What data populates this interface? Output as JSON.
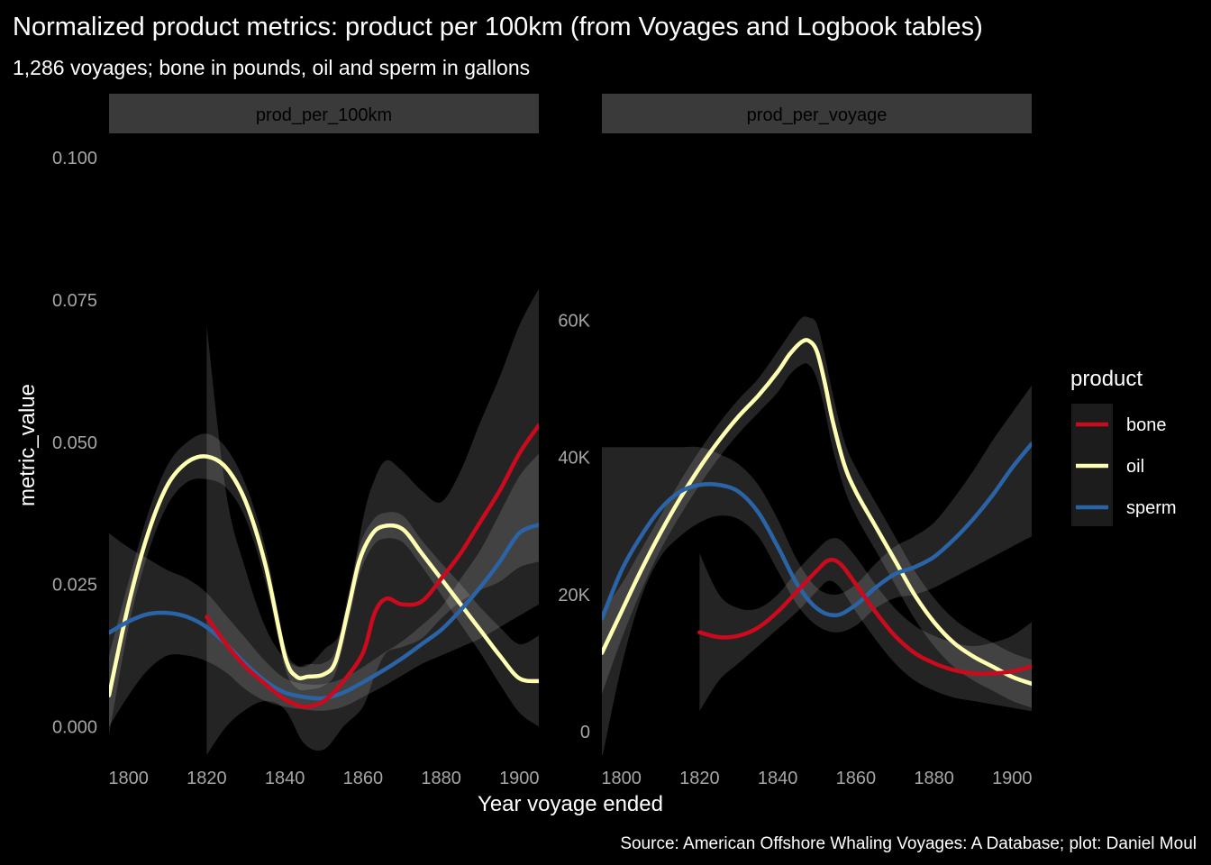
{
  "title": "Normalized product metrics: product per 100km (from Voyages and Logbook tables)",
  "subtitle": "1,286 voyages; bone in pounds, oil and sperm in gallons",
  "caption": "Source: American Offshore Whaling Voyages: A Database; plot: Daniel Moul",
  "xlabel": "Year voyage ended",
  "ylabel": "metric_value",
  "colors": {
    "background": "#000000",
    "strip": "#3a3a3a",
    "band": "#ffffff",
    "axis_text": "#a6a6a6",
    "text": "#ffffff",
    "bone": "#cc0a1e",
    "oil": "#ffffb3",
    "sperm": "#2b64a6"
  },
  "legend": {
    "title": "product",
    "position": "right",
    "items": [
      {
        "key": "bone",
        "label": "bone"
      },
      {
        "key": "oil",
        "label": "oil"
      },
      {
        "key": "sperm",
        "label": "sperm"
      }
    ]
  },
  "chart_data": [
    {
      "type": "line",
      "facet": "prod_per_100km",
      "xlim": [
        1795,
        1905
      ],
      "ylim": [
        -0.005,
        0.104
      ],
      "x_ticks": [
        1800,
        1820,
        1840,
        1860,
        1880,
        1900
      ],
      "y_ticks": [
        {
          "value": 0.0,
          "label": "0.000"
        },
        {
          "value": 0.025,
          "label": "0.025"
        },
        {
          "value": 0.05,
          "label": "0.050"
        },
        {
          "value": 0.075,
          "label": "0.075"
        },
        {
          "value": 0.1,
          "label": "0.100"
        }
      ],
      "series": [
        {
          "key": "bone",
          "x": [
            1820,
            1825,
            1830,
            1835,
            1840,
            1845,
            1850,
            1855,
            1860,
            1863,
            1866,
            1870,
            1875,
            1880,
            1885,
            1890,
            1895,
            1900,
            1905
          ],
          "y": [
            0.0193,
            0.0145,
            0.0105,
            0.0075,
            0.0048,
            0.0035,
            0.0045,
            0.008,
            0.013,
            0.02,
            0.0225,
            0.0215,
            0.022,
            0.026,
            0.0305,
            0.036,
            0.0415,
            0.048,
            0.053
          ],
          "lower": [
            -0.005,
            0.0,
            0.003,
            0.0045,
            0.003,
            -0.003,
            -0.004,
            0.0,
            0.0035,
            0.009,
            0.013,
            0.014,
            0.0155,
            0.019,
            0.022,
            0.024,
            0.0255,
            0.028,
            0.029
          ],
          "upper": [
            0.0705,
            0.041,
            0.0275,
            0.0175,
            0.012,
            0.0105,
            0.0135,
            0.018,
            0.0365,
            0.0435,
            0.0468,
            0.045,
            0.0415,
            0.0395,
            0.045,
            0.0535,
            0.0615,
            0.0705,
            0.077
          ]
        },
        {
          "key": "oil",
          "x": [
            1795,
            1800,
            1805,
            1810,
            1815,
            1820,
            1825,
            1830,
            1835,
            1840,
            1843,
            1846,
            1850,
            1853,
            1856,
            1859,
            1862,
            1865,
            1870,
            1875,
            1880,
            1885,
            1890,
            1895,
            1900,
            1905
          ],
          "y": [
            0.0055,
            0.0215,
            0.034,
            0.0425,
            0.0465,
            0.0475,
            0.0455,
            0.0395,
            0.0285,
            0.0125,
            0.0088,
            0.0088,
            0.0092,
            0.0115,
            0.02,
            0.029,
            0.0335,
            0.0352,
            0.0348,
            0.0305,
            0.026,
            0.0215,
            0.017,
            0.0125,
            0.0085,
            0.008
          ],
          "lower": [
            -0.0015,
            0.0175,
            0.0305,
            0.039,
            0.043,
            0.0435,
            0.042,
            0.0365,
            0.0255,
            0.0105,
            0.0068,
            0.0065,
            0.0072,
            0.0095,
            0.0175,
            0.0265,
            0.0312,
            0.033,
            0.0325,
            0.0282,
            0.0232,
            0.018,
            0.013,
            0.0075,
            0.0025,
            0.0
          ],
          "upper": [
            0.0125,
            0.0255,
            0.0375,
            0.046,
            0.05,
            0.0515,
            0.049,
            0.0425,
            0.0315,
            0.0145,
            0.0108,
            0.011,
            0.0112,
            0.0135,
            0.0225,
            0.0315,
            0.0358,
            0.0375,
            0.0372,
            0.0328,
            0.0288,
            0.025,
            0.021,
            0.0175,
            0.0145,
            0.016
          ]
        },
        {
          "key": "sperm",
          "x": [
            1795,
            1800,
            1805,
            1810,
            1815,
            1820,
            1825,
            1830,
            1835,
            1840,
            1845,
            1850,
            1855,
            1860,
            1865,
            1870,
            1875,
            1880,
            1885,
            1890,
            1895,
            1900,
            1905
          ],
          "y": [
            0.0165,
            0.0185,
            0.0198,
            0.02,
            0.0193,
            0.0175,
            0.0145,
            0.011,
            0.008,
            0.006,
            0.0052,
            0.005,
            0.006,
            0.0078,
            0.0098,
            0.012,
            0.0145,
            0.017,
            0.0205,
            0.0245,
            0.029,
            0.034,
            0.0355
          ],
          "lower": [
            0.0,
            0.0055,
            0.01,
            0.0125,
            0.0125,
            0.0115,
            0.0095,
            0.0065,
            0.0045,
            0.0035,
            0.003,
            0.0028,
            0.0035,
            0.0052,
            0.007,
            0.009,
            0.011,
            0.0125,
            0.014,
            0.0155,
            0.0175,
            0.0195,
            0.0215
          ],
          "upper": [
            0.034,
            0.0315,
            0.0295,
            0.0275,
            0.026,
            0.0235,
            0.0195,
            0.0155,
            0.0115,
            0.0085,
            0.0075,
            0.0075,
            0.0085,
            0.0105,
            0.0128,
            0.015,
            0.0178,
            0.021,
            0.026,
            0.031,
            0.0375,
            0.044,
            0.048
          ]
        }
      ]
    },
    {
      "type": "line",
      "facet": "prod_per_voyage",
      "xlim": [
        1795,
        1905
      ],
      "ylim": [
        -3400,
        87000
      ],
      "x_ticks": [
        1800,
        1820,
        1840,
        1860,
        1880,
        1900
      ],
      "y_ticks": [
        {
          "value": 0,
          "label": "0"
        },
        {
          "value": 20000,
          "label": "20K"
        },
        {
          "value": 40000,
          "label": "40K"
        },
        {
          "value": 60000,
          "label": "60K"
        }
      ],
      "series": [
        {
          "key": "bone",
          "x": [
            1820,
            1825,
            1830,
            1835,
            1840,
            1845,
            1850,
            1853,
            1856,
            1860,
            1865,
            1870,
            1875,
            1880,
            1885,
            1890,
            1895,
            1900,
            1905
          ],
          "y": [
            14500,
            13800,
            14000,
            15200,
            17500,
            20500,
            23500,
            25000,
            24500,
            21500,
            17500,
            14000,
            11500,
            10000,
            9000,
            8500,
            8500,
            8800,
            9500
          ],
          "lower": [
            3000,
            7500,
            10000,
            12500,
            15000,
            17500,
            20500,
            22000,
            21000,
            17500,
            13500,
            10000,
            7500,
            6000,
            5000,
            4500,
            4000,
            3500,
            3000
          ],
          "upper": [
            26000,
            20000,
            18000,
            18000,
            20000,
            23500,
            26500,
            28000,
            28000,
            25500,
            21500,
            18000,
            15500,
            14000,
            13000,
            12500,
            13000,
            14000,
            16000
          ]
        },
        {
          "key": "oil",
          "x": [
            1795,
            1800,
            1805,
            1810,
            1815,
            1820,
            1825,
            1830,
            1835,
            1840,
            1843,
            1846,
            1848,
            1850,
            1852,
            1854,
            1857,
            1860,
            1865,
            1870,
            1875,
            1880,
            1885,
            1890,
            1895,
            1900,
            1905
          ],
          "y": [
            11500,
            17500,
            23500,
            29000,
            34000,
            38500,
            42500,
            46000,
            49000,
            52500,
            55000,
            56800,
            57000,
            55500,
            51000,
            45500,
            39000,
            35000,
            30000,
            25000,
            20000,
            16000,
            13000,
            11000,
            9500,
            8000,
            7000
          ],
          "lower": [
            5500,
            13500,
            20500,
            26500,
            31500,
            36000,
            40000,
            43500,
            46500,
            49500,
            52000,
            53500,
            53500,
            51500,
            47000,
            41500,
            35500,
            31500,
            26500,
            21500,
            16500,
            12500,
            9500,
            7500,
            6000,
            4500,
            3500
          ],
          "upper": [
            17500,
            21500,
            26500,
            31500,
            36500,
            41000,
            45000,
            48500,
            51500,
            55500,
            58000,
            60300,
            60400,
            59500,
            55000,
            49500,
            42500,
            38500,
            33500,
            28500,
            23500,
            19500,
            16500,
            14500,
            13000,
            11500,
            10500
          ]
        },
        {
          "key": "sperm",
          "x": [
            1795,
            1800,
            1805,
            1810,
            1815,
            1820,
            1825,
            1830,
            1835,
            1840,
            1845,
            1850,
            1855,
            1860,
            1865,
            1870,
            1875,
            1880,
            1885,
            1890,
            1895,
            1900,
            1905
          ],
          "y": [
            16500,
            23500,
            28500,
            32500,
            35000,
            36000,
            36000,
            35000,
            32000,
            27000,
            21500,
            18000,
            17000,
            18500,
            21000,
            23000,
            24000,
            25500,
            28000,
            31000,
            34500,
            38500,
            42000
          ],
          "lower": [
            -4000,
            9500,
            19500,
            25500,
            28500,
            30500,
            31500,
            31000,
            28500,
            23500,
            18500,
            15500,
            14500,
            15500,
            18000,
            19500,
            20000,
            21000,
            22500,
            24000,
            25500,
            27000,
            28500
          ],
          "upper": [
            41500,
            41500,
            41500,
            41500,
            41500,
            41500,
            40500,
            39000,
            36000,
            31000,
            25000,
            21000,
            20000,
            21500,
            24500,
            27000,
            28500,
            30500,
            34000,
            38000,
            42500,
            46500,
            50500
          ]
        }
      ]
    }
  ]
}
